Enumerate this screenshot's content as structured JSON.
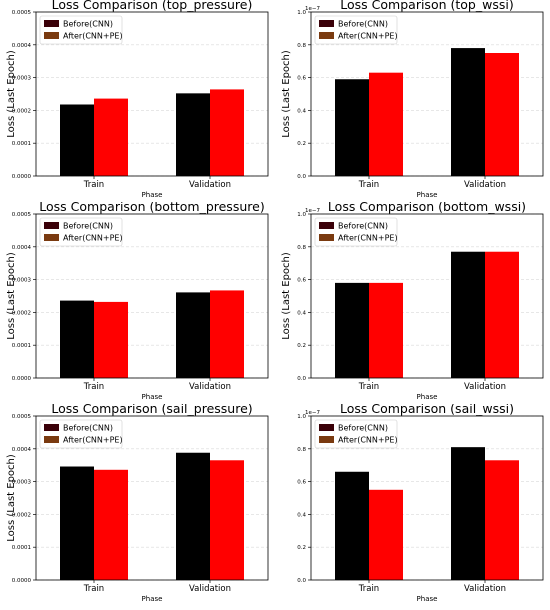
{
  "chart_data": [
    {
      "type": "bar",
      "title": "Loss Comparison (top_pressure)",
      "xlabel": "Phase",
      "ylabel": "Loss (Last Epoch)",
      "categories": [
        "Train",
        "Validation"
      ],
      "series": [
        {
          "name": "Before(CNN)",
          "values": [
            0.000218,
            0.000252
          ]
        },
        {
          "name": "After(CNN+PE)",
          "values": [
            0.000236,
            0.000264
          ]
        }
      ],
      "ylim": [
        0,
        0.0005
      ],
      "yticks": [
        "0.0000",
        "0.0001",
        "0.0002",
        "0.0003",
        "0.0004",
        "0.0005"
      ],
      "scale_label": "",
      "legend": "top-left",
      "grid": "y"
    },
    {
      "type": "bar",
      "title": "Loss Comparison (top_wssi)",
      "xlabel": "Phase",
      "ylabel": "Loss (Last Epoch)",
      "categories": [
        "Train",
        "Validation"
      ],
      "series": [
        {
          "name": "Before(CNN)",
          "values": [
            0.59,
            0.78
          ]
        },
        {
          "name": "After(CNN+PE)",
          "values": [
            0.63,
            0.75
          ]
        }
      ],
      "ylim": [
        0,
        1.0
      ],
      "yticks": [
        "0.0",
        "0.2",
        "0.4",
        "0.6",
        "0.8",
        "1.0"
      ],
      "scale_label": "1e−7",
      "legend": "top-left",
      "grid": "y"
    },
    {
      "type": "bar",
      "title": "Loss Comparison (bottom_pressure)",
      "xlabel": "Phase",
      "ylabel": "Loss (Last Epoch)",
      "categories": [
        "Train",
        "Validation"
      ],
      "series": [
        {
          "name": "Before(CNN)",
          "values": [
            0.000236,
            0.000261
          ]
        },
        {
          "name": "After(CNN+PE)",
          "values": [
            0.000232,
            0.000267
          ]
        }
      ],
      "ylim": [
        0,
        0.0005
      ],
      "yticks": [
        "0.0000",
        "0.0001",
        "0.0002",
        "0.0003",
        "0.0004",
        "0.0005"
      ],
      "scale_label": "",
      "legend": "top-left",
      "grid": "y"
    },
    {
      "type": "bar",
      "title": "Loss Comparison (bottom_wssi)",
      "xlabel": "Phase",
      "ylabel": "Loss (Last Epoch)",
      "categories": [
        "Train",
        "Validation"
      ],
      "series": [
        {
          "name": "Before(CNN)",
          "values": [
            0.58,
            0.77
          ]
        },
        {
          "name": "After(CNN+PE)",
          "values": [
            0.58,
            0.77
          ]
        }
      ],
      "ylim": [
        0,
        1.0
      ],
      "yticks": [
        "0.0",
        "0.2",
        "0.4",
        "0.6",
        "0.8",
        "1.0"
      ],
      "scale_label": "1e−7",
      "legend": "top-left",
      "grid": "y"
    },
    {
      "type": "bar",
      "title": "Loss Comparison (sail_pressure)",
      "xlabel": "Phase",
      "ylabel": "Loss (Last Epoch)",
      "categories": [
        "Train",
        "Validation"
      ],
      "series": [
        {
          "name": "Before(CNN)",
          "values": [
            0.000346,
            0.000388
          ]
        },
        {
          "name": "After(CNN+PE)",
          "values": [
            0.000336,
            0.000365
          ]
        }
      ],
      "ylim": [
        0,
        0.0005
      ],
      "yticks": [
        "0.0000",
        "0.0001",
        "0.0002",
        "0.0003",
        "0.0004",
        "0.0005"
      ],
      "scale_label": "",
      "legend": "top-left",
      "grid": "y"
    },
    {
      "type": "bar",
      "title": "Loss Comparison (sail_wssi)",
      "xlabel": "Phase",
      "ylabel": "",
      "categories": [
        "Train",
        "Validation"
      ],
      "series": [
        {
          "name": "Before(CNN)",
          "values": [
            0.66,
            0.81
          ]
        },
        {
          "name": "After(CNN+PE)",
          "values": [
            0.55,
            0.73
          ]
        }
      ],
      "ylim": [
        0,
        1.0
      ],
      "yticks": [
        "0.0",
        "0.2",
        "0.4",
        "0.6",
        "0.8",
        "1.0"
      ],
      "scale_label": "1e−7",
      "legend": "top-left",
      "grid": "y"
    }
  ],
  "colors": {
    "before": "#000000",
    "after": "#ff0000",
    "legend_before_swatch": "#3a0008",
    "legend_after_swatch": "#7a3a10",
    "grid": "#d9d9d9"
  }
}
